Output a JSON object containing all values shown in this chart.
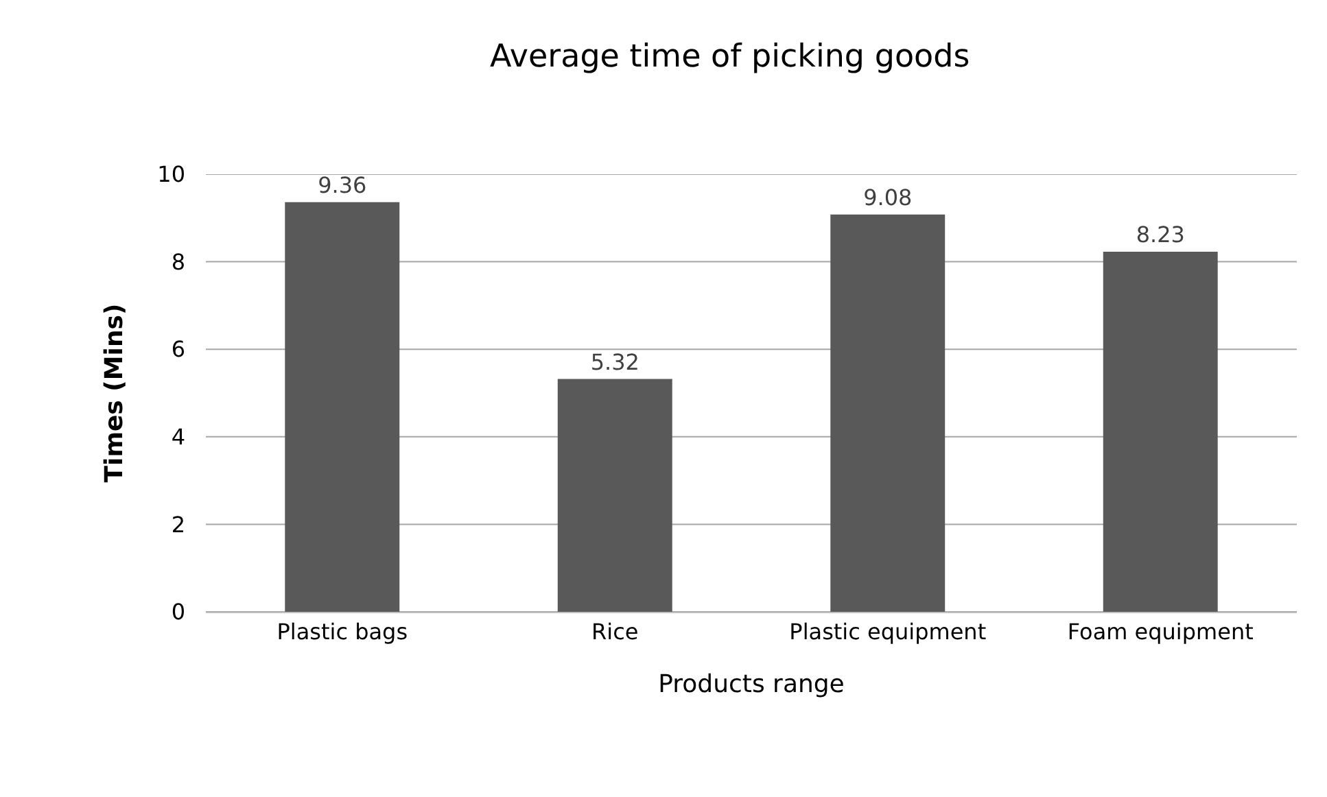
{
  "chart_data": {
    "type": "bar",
    "title": "Average time of picking goods",
    "xlabel": "Products range",
    "ylabel": "Times (Mins)",
    "categories": [
      "Plastic bags",
      "Rice",
      "Plastic equipment",
      "Foam equipment"
    ],
    "values": [
      9.36,
      5.32,
      9.08,
      8.23
    ],
    "color": "#595959",
    "ylim": [
      0,
      10
    ],
    "yticks": [
      0,
      2,
      4,
      6,
      8,
      10
    ],
    "grid": "y",
    "data_labels": true
  }
}
